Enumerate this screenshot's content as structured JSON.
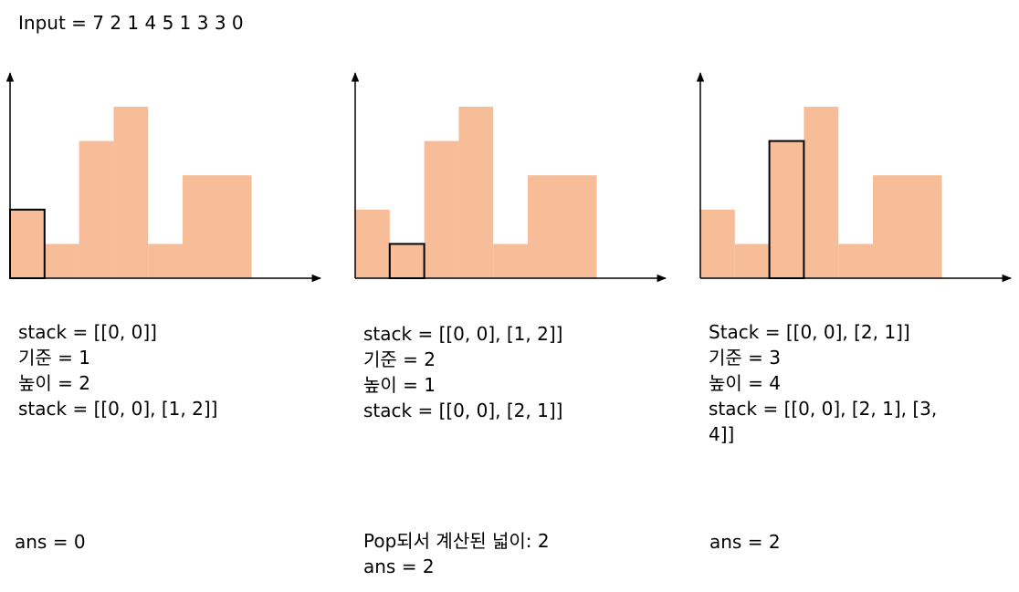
{
  "input_label": "Input = 7 2 1 4 5 1 3 3 0",
  "colors": {
    "bar_fill": "#f6bd98",
    "outline": "#000000",
    "axis": "#000000"
  },
  "heights": [
    2,
    1,
    4,
    5,
    1,
    3,
    3
  ],
  "panels": [
    {
      "highlight_index": 0,
      "lines": [
        "stack = [[0, 0]]",
        "기준 = 1",
        "높이 = 2",
        "stack = [[0, 0], [1, 2]]"
      ],
      "result_lines": [
        "ans = 0"
      ]
    },
    {
      "highlight_index": 1,
      "lines": [
        "stack = [[0, 0], [1, 2]]",
        "기준 = 2",
        "높이 = 1",
        "stack = [[0, 0], [2, 1]]"
      ],
      "result_lines": [
        "Pop되서 계산된 넓이: 2",
        "ans = 2"
      ]
    },
    {
      "highlight_index": 2,
      "lines": [
        "Stack = [[0, 0], [2, 1]]",
        "기준 = 3",
        "높이 = 4",
        "stack = [[0, 0], [2, 1], [3,",
        "4]]"
      ],
      "result_lines": [
        "ans = 2"
      ]
    }
  ]
}
